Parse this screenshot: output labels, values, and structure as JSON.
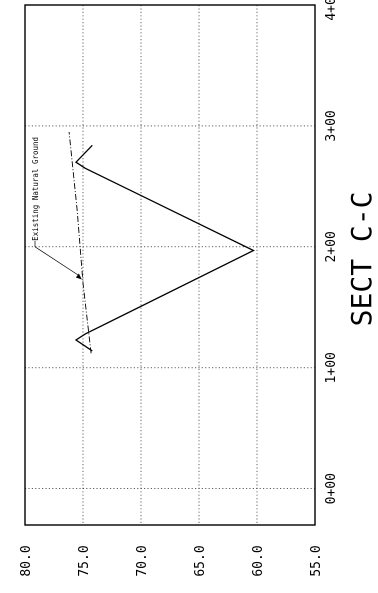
{
  "chart_data": {
    "type": "line",
    "title": "SECT C-C",
    "orientation": "rotated 90° counter-clockwise",
    "x_ticks": [
      "0+00",
      "1+00",
      "2+00",
      "3+00",
      "4+00"
    ],
    "y_ticks": [
      "55.0",
      "60.0",
      "65.0",
      "70.0",
      "75.0",
      "80.0"
    ],
    "xlim": [
      -0.3,
      4.0
    ],
    "ylim": [
      55.0,
      80.0
    ],
    "grid": true,
    "series": [
      {
        "name": "",
        "style": "solid",
        "points": [
          {
            "x": 1.14,
            "y": 74.2
          },
          {
            "x": 1.23,
            "y": 75.6
          },
          {
            "x": 1.28,
            "y": 74.8
          },
          {
            "x": 1.97,
            "y": 60.3
          },
          {
            "x": 2.65,
            "y": 74.8
          },
          {
            "x": 2.7,
            "y": 75.6
          },
          {
            "x": 2.84,
            "y": 74.2
          }
        ]
      },
      {
        "name": "Existing Natural Ground",
        "style": "dashed",
        "points": [
          {
            "x": 1.12,
            "y": 74.3
          },
          {
            "x": 1.7,
            "y": 75.0
          },
          {
            "x": 2.3,
            "y": 75.5
          },
          {
            "x": 2.95,
            "y": 76.2
          }
        ]
      }
    ],
    "annotations": [
      {
        "text": "Existing Natural Ground",
        "x": 1.73,
        "y": 75.1
      }
    ]
  }
}
